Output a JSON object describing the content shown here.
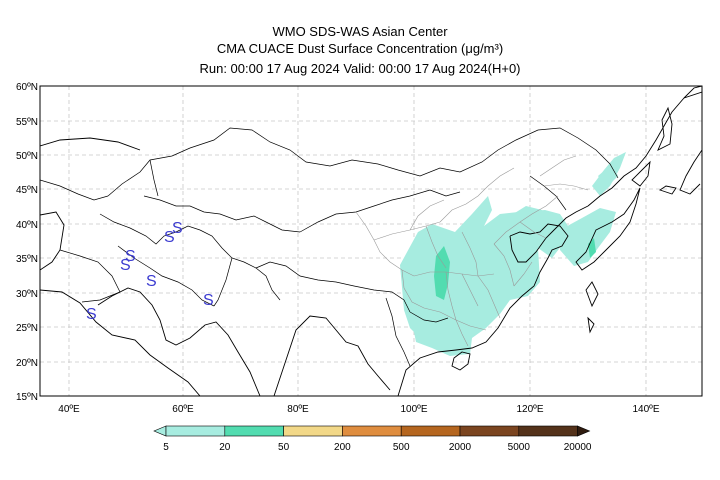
{
  "header": {
    "line1": "WMO SDS-WAS Asian Center",
    "line2": "CMA CUACE Dust Surface Concentration (μg/m³)",
    "line3": "Run: 00:00 17 Aug 2024    Valid: 00:00 17 Aug 2024(H+0)"
  },
  "map": {
    "lat_labels": [
      "60ºN",
      "55ºN",
      "50ºN",
      "45ºN",
      "40ºN",
      "35ºN",
      "30ºN",
      "25ºN",
      "20ºN",
      "15ºN"
    ],
    "lon_labels": [
      "40ºE",
      "60ºE",
      "80ºE",
      "100ºE",
      "120ºE",
      "140ºE"
    ],
    "station_symbol": "S"
  },
  "legend": {
    "colors": [
      "#a7ece0",
      "#52dcb0",
      "#f2d888",
      "#df8d3f",
      "#b5661f",
      "#7b4520",
      "#54321a",
      "#2f1b0f"
    ],
    "labels": [
      "5",
      "20",
      "50",
      "200",
      "500",
      "2000",
      "5000",
      "20000"
    ]
  }
}
